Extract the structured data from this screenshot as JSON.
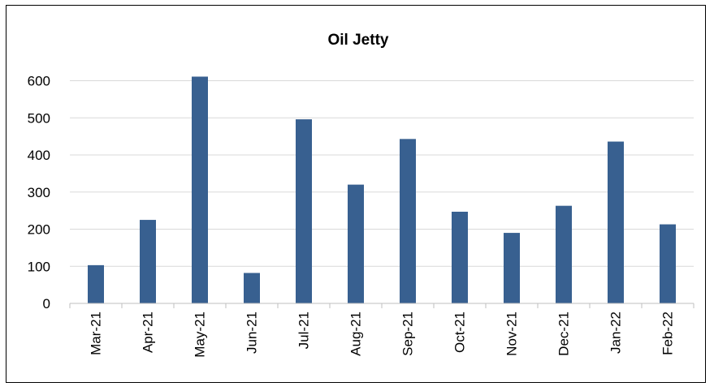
{
  "chart_data": {
    "type": "bar",
    "title": "Oil Jetty",
    "xlabel": "",
    "ylabel": "",
    "categories": [
      "Mar-21",
      "Apr-21",
      "May-21",
      "Jun-21",
      "Jul-21",
      "Aug-21",
      "Sep-21",
      "Oct-21",
      "Nov-21",
      "Dec-21",
      "Jan-22",
      "Feb-22"
    ],
    "values": [
      103,
      225,
      611,
      82,
      496,
      320,
      443,
      247,
      190,
      263,
      436,
      213
    ],
    "ylim": [
      0,
      600
    ],
    "yticks": [
      0,
      100,
      200,
      300,
      400,
      500,
      600
    ],
    "grid": true,
    "legend": "none",
    "bar_color": "#386090",
    "grid_color": "#d9d9d9",
    "axis_color": "#bfbfbf"
  }
}
